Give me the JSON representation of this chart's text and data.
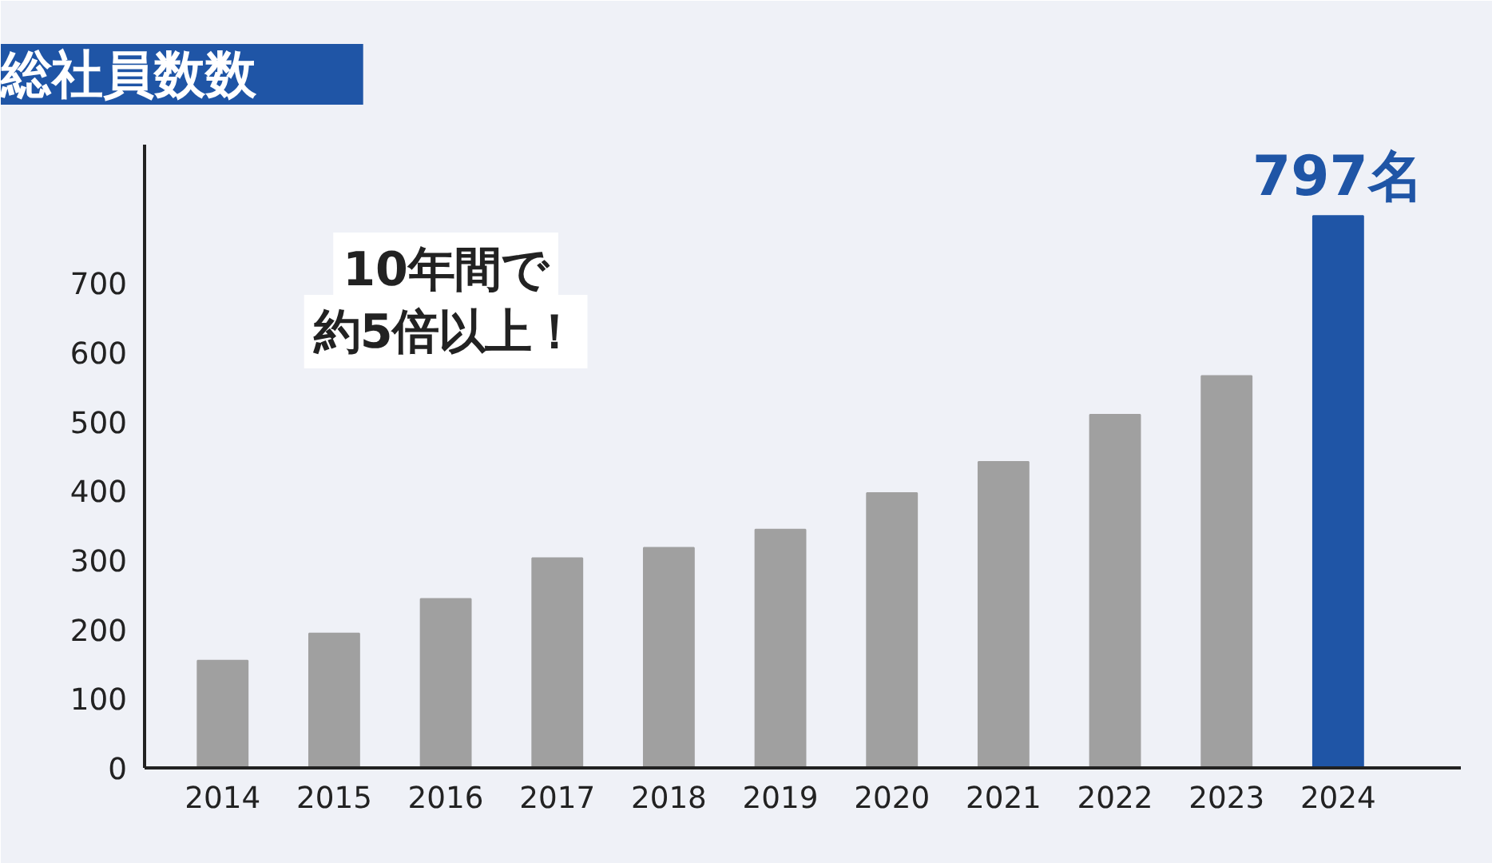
{
  "chart_data": {
    "type": "bar",
    "title": "総社員数数",
    "categories": [
      "2014",
      "2015",
      "2016",
      "2017",
      "2018",
      "2019",
      "2020",
      "2021",
      "2022",
      "2023",
      "2024"
    ],
    "values": [
      155,
      194,
      244,
      303,
      318,
      344,
      397,
      442,
      510,
      566,
      797
    ],
    "colors": [
      "#a0a0a0",
      "#a0a0a0",
      "#a0a0a0",
      "#a0a0a0",
      "#a0a0a0",
      "#a0a0a0",
      "#a0a0a0",
      "#a0a0a0",
      "#a0a0a0",
      "#a0a0a0",
      "#1f55a6"
    ],
    "value_labels": [
      null,
      null,
      null,
      null,
      null,
      null,
      null,
      null,
      null,
      null,
      "797名"
    ],
    "ylim": [
      0,
      900
    ],
    "yticks": [
      0,
      100,
      200,
      300,
      400,
      500,
      600,
      700
    ],
    "annotations": [
      "10年間で",
      "約5倍以上！"
    ],
    "grid": false
  }
}
